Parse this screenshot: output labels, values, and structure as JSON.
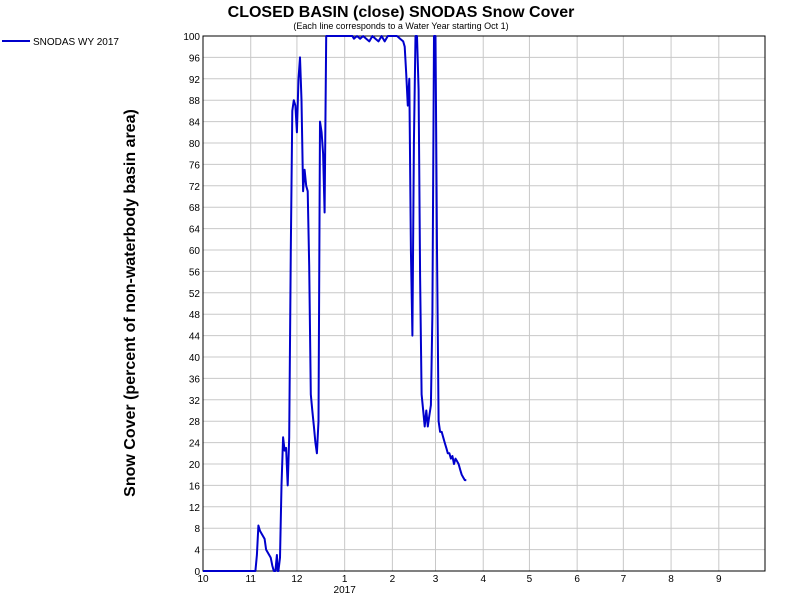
{
  "chart_data": {
    "type": "line",
    "title": "CLOSED BASIN (close) SNODAS Snow Cover",
    "subtitle": "(Each line corresponds to a Water Year starting Oct 1)",
    "ylabel": "Snow Cover (percent of non-waterbody basin area)",
    "xlabel": "",
    "ylim": [
      0,
      100
    ],
    "y_ticks": [
      0,
      4,
      8,
      12,
      16,
      20,
      24,
      28,
      32,
      36,
      40,
      44,
      48,
      52,
      56,
      60,
      64,
      68,
      72,
      76,
      80,
      84,
      88,
      92,
      96,
      100
    ],
    "x_ticks": [
      {
        "label": "10",
        "x": 0
      },
      {
        "label": "11",
        "x": 31
      },
      {
        "label": "12",
        "x": 61
      },
      {
        "label": "1",
        "x": 92
      },
      {
        "label": "2",
        "x": 123
      },
      {
        "label": "3",
        "x": 151
      },
      {
        "label": "4",
        "x": 182
      },
      {
        "label": "5",
        "x": 212
      },
      {
        "label": "6",
        "x": 243
      },
      {
        "label": "7",
        "x": 273
      },
      {
        "label": "8",
        "x": 304
      },
      {
        "label": "9",
        "x": 335
      }
    ],
    "x_year_label": "2017",
    "xlim": [
      0,
      365
    ],
    "grid": true,
    "legend_position": "top-left",
    "series": [
      {
        "name": "SNODAS WY 2017",
        "color": "#0000cc",
        "x": [
          0,
          34,
          35,
          36,
          37,
          38,
          40,
          41,
          43,
          44,
          45,
          46,
          47,
          48,
          48.5,
          49,
          50,
          51,
          52,
          53,
          54,
          55,
          56,
          57,
          58,
          59,
          60,
          61,
          62,
          63,
          64,
          65,
          66,
          67,
          68,
          69,
          70,
          71,
          72,
          73,
          74,
          75,
          76,
          77,
          78,
          79,
          80,
          81,
          82,
          83,
          84,
          85,
          86,
          87,
          88,
          89,
          89.5,
          90,
          92,
          95,
          97,
          98,
          100,
          102,
          104,
          106,
          108,
          110,
          112,
          114,
          116,
          118,
          120,
          122,
          124,
          126,
          128,
          130,
          131,
          132,
          133,
          134,
          135,
          136,
          137,
          138,
          139,
          140,
          141,
          142,
          143,
          144,
          145,
          146,
          147,
          148,
          149,
          150,
          151,
          152,
          153,
          154,
          155,
          156,
          157,
          158,
          159,
          160,
          161,
          162,
          163,
          164,
          165,
          166,
          167,
          168,
          169,
          170,
          171
        ],
        "y": [
          0,
          0,
          3,
          8.5,
          7.5,
          7,
          6,
          4,
          3,
          2.5,
          1,
          0,
          0,
          3,
          0,
          0,
          2.5,
          16,
          25,
          22.5,
          23,
          16,
          25,
          60,
          86,
          88,
          87,
          82,
          92,
          96,
          88,
          71,
          75,
          72,
          71,
          57,
          33,
          30,
          27,
          24,
          22,
          28,
          84,
          82,
          78,
          67,
          100,
          100,
          100,
          100,
          100,
          100,
          100,
          100,
          100,
          100,
          100,
          100,
          100,
          100,
          100,
          99.5,
          100,
          99.5,
          100,
          99.5,
          99,
          100,
          99.5,
          99,
          100,
          99,
          100,
          100,
          100,
          100,
          99.5,
          99,
          98,
          93,
          87,
          92,
          60,
          44,
          80,
          100,
          100,
          90,
          55,
          33,
          30,
          27,
          30,
          27,
          29,
          31,
          48,
          100,
          100,
          60,
          28,
          26,
          26,
          25,
          24,
          23,
          22,
          22,
          21,
          21.5,
          20,
          21,
          20.5,
          20,
          19,
          18,
          17.5,
          17,
          17
        ]
      }
    ]
  }
}
